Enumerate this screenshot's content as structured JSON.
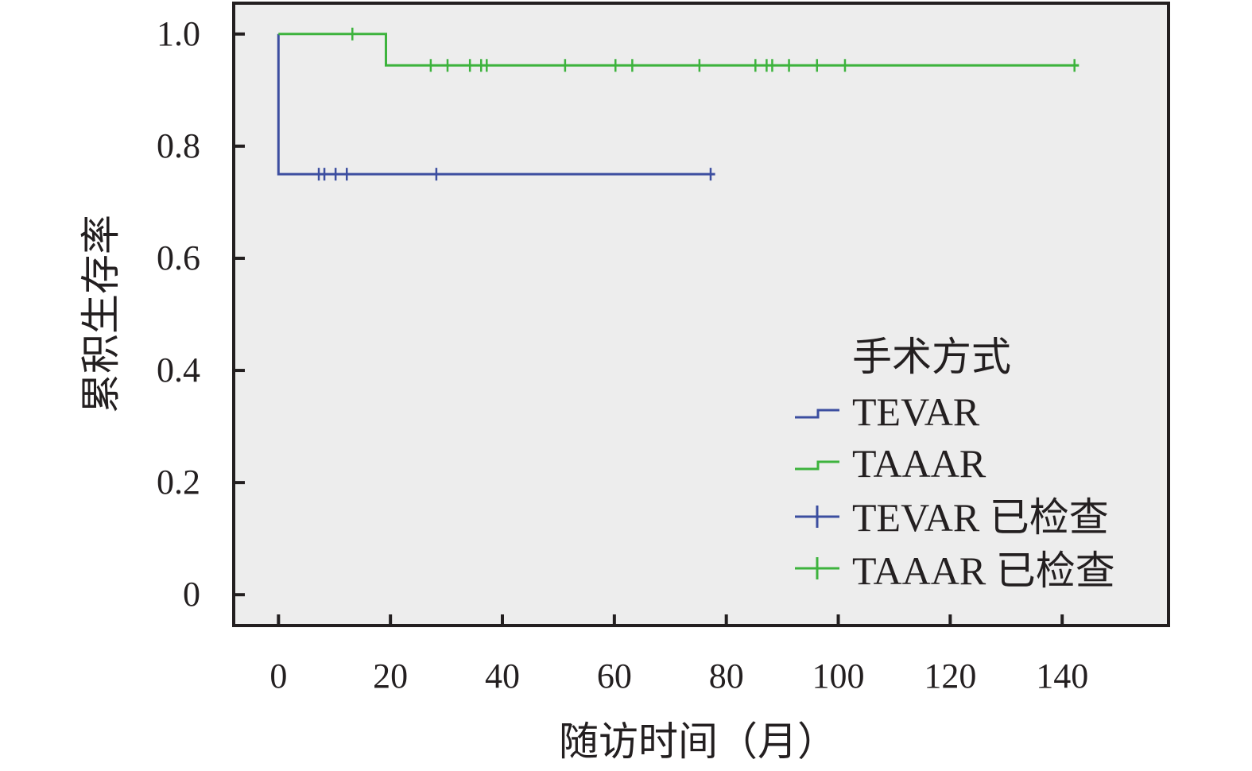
{
  "chart_data": {
    "type": "line",
    "subtype": "kaplan-meier",
    "xlabel": "随访时间（月）",
    "ylabel": "累积生存率",
    "xlim": [
      -8,
      159
    ],
    "ylim": [
      -0.055,
      1.055
    ],
    "xticks": [
      0,
      20,
      40,
      60,
      80,
      100,
      120,
      140
    ],
    "xtick_labels": [
      "0",
      "20",
      "40",
      "60",
      "80",
      "100",
      "120",
      "140"
    ],
    "yticks": [
      0,
      0.2,
      0.4,
      0.6,
      0.8,
      1.0
    ],
    "ytick_labels": [
      "0",
      "0.2",
      "0.4",
      "0.6",
      "0.8",
      "1.0"
    ],
    "plot_background": "#ededed",
    "grid": false,
    "legend_position": "lower-right",
    "legend_title": "手术方式",
    "series": [
      {
        "name": "TEVAR",
        "color": "#3c4ea0",
        "steps": [
          [
            0,
            1.0
          ],
          [
            0,
            0.75
          ],
          [
            78,
            0.75
          ]
        ],
        "censored_name": "TEVAR 已检查",
        "censored": [
          7.2,
          8.2,
          10.2,
          12.2,
          28.2,
          77.2
        ]
      },
      {
        "name": "TAAAR",
        "color": "#3db33d",
        "steps": [
          [
            0,
            1.0
          ],
          [
            19.2,
            1.0
          ],
          [
            19.2,
            0.944
          ],
          [
            143,
            0.944
          ]
        ],
        "censored_name": "TAAAR 已检查",
        "censored": [
          13.2,
          27.2,
          30.2,
          34.2,
          36.2,
          37.2,
          51.2,
          60.2,
          63.2,
          75.2,
          85.2,
          87.2,
          88.2,
          91.2,
          96.2,
          101.2,
          142.2
        ],
        "censored_y_overrides": {
          "13.2": 1.0
        }
      }
    ]
  }
}
